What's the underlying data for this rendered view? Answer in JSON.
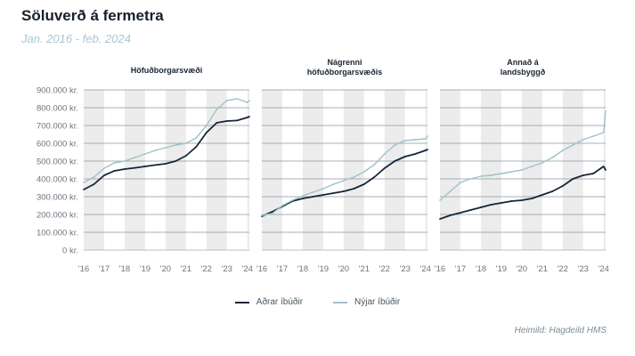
{
  "title": "Söluverð á fermetra",
  "subtitle": "Jan. 2016 - feb. 2024",
  "source": "Heimild: Hagdeild HMS",
  "legend": [
    {
      "label": "Aðrar íbúðir",
      "color": "#16263a"
    },
    {
      "label": "Nýjar íbúðir",
      "color": "#9ec3c9"
    }
  ],
  "chart_data": {
    "type": "line",
    "ylim": [
      0,
      900000
    ],
    "yticks": [
      {
        "value": 0,
        "label": "0 kr."
      },
      {
        "value": 100000,
        "label": "100.000 kr."
      },
      {
        "value": 200000,
        "label": "200.000 kr."
      },
      {
        "value": 300000,
        "label": "300.000 kr."
      },
      {
        "value": 400000,
        "label": "400.000 kr."
      },
      {
        "value": 500000,
        "label": "500.000 kr."
      },
      {
        "value": 600000,
        "label": "600.000 kr."
      },
      {
        "value": 700000,
        "label": "700.000 kr."
      },
      {
        "value": 800000,
        "label": "800.000 kr."
      },
      {
        "value": 900000,
        "label": "900.000 kr."
      }
    ],
    "xlim": [
      2016.0,
      2024.1
    ],
    "xticks": [
      {
        "value": 2016,
        "label": "'16"
      },
      {
        "value": 2017,
        "label": "'17"
      },
      {
        "value": 2018,
        "label": "'18"
      },
      {
        "value": 2019,
        "label": "'19"
      },
      {
        "value": 2020,
        "label": "'20"
      },
      {
        "value": 2021,
        "label": "'21"
      },
      {
        "value": 2022,
        "label": "'22"
      },
      {
        "value": 2023,
        "label": "'23"
      },
      {
        "value": 2024,
        "label": "'24"
      }
    ],
    "grid": true,
    "legend_position": "bottom-center",
    "panels": [
      {
        "title": [
          "Höfuðborgarsvæði"
        ],
        "series": [
          {
            "name": "Aðrar íbúðir",
            "color": "#16263a",
            "x": [
              2016.0,
              2016.5,
              2017.0,
              2017.5,
              2018.0,
              2018.5,
              2019.0,
              2019.5,
              2020.0,
              2020.5,
              2021.0,
              2021.5,
              2022.0,
              2022.5,
              2023.0,
              2023.5,
              2024.0,
              2024.1
            ],
            "y": [
              340000,
              370000,
              420000,
              445000,
              455000,
              462000,
              470000,
              478000,
              485000,
              500000,
              530000,
              580000,
              660000,
              715000,
              725000,
              728000,
              745000,
              750000
            ]
          },
          {
            "name": "Nýjar íbúðir",
            "color": "#9ec3c9",
            "x": [
              2016.0,
              2016.5,
              2017.0,
              2017.5,
              2018.0,
              2018.5,
              2019.0,
              2019.5,
              2020.0,
              2020.5,
              2021.0,
              2021.5,
              2022.0,
              2022.5,
              2023.0,
              2023.5,
              2024.0,
              2024.1
            ],
            "y": [
              380000,
              410000,
              460000,
              490000,
              500000,
              520000,
              540000,
              560000,
              575000,
              590000,
              600000,
              630000,
              700000,
              790000,
              840000,
              850000,
              830000,
              840000
            ]
          }
        ]
      },
      {
        "title": [
          "Nágrenni",
          "höfuðborgarsvæðis"
        ],
        "series": [
          {
            "name": "Aðrar íbúðir",
            "color": "#16263a",
            "x": [
              2016.0,
              2016.5,
              2017.0,
              2017.5,
              2018.0,
              2018.5,
              2019.0,
              2019.5,
              2020.0,
              2020.5,
              2021.0,
              2021.5,
              2022.0,
              2022.5,
              2023.0,
              2023.5,
              2024.0,
              2024.1
            ],
            "y": [
              190000,
              215000,
              245000,
              275000,
              290000,
              300000,
              310000,
              320000,
              330000,
              345000,
              370000,
              410000,
              460000,
              500000,
              525000,
              540000,
              560000,
              565000
            ]
          },
          {
            "name": "Nýjar íbúðir",
            "color": "#9ec3c9",
            "x": [
              2016.0,
              2016.5,
              2017.0,
              2017.5,
              2018.0,
              2018.5,
              2019.0,
              2019.5,
              2020.0,
              2020.5,
              2021.0,
              2021.5,
              2022.0,
              2022.5,
              2023.0,
              2023.5,
              2024.0,
              2024.1
            ],
            "y": [
              195000,
              205000,
              250000,
              280000,
              305000,
              325000,
              345000,
              370000,
              390000,
              410000,
              440000,
              480000,
              540000,
              590000,
              615000,
              620000,
              625000,
              640000
            ]
          }
        ]
      },
      {
        "title": [
          "Annað á",
          "landsbyggð"
        ],
        "series": [
          {
            "name": "Aðrar íbúðir",
            "color": "#16263a",
            "x": [
              2016.0,
              2016.5,
              2017.0,
              2017.5,
              2018.0,
              2018.5,
              2019.0,
              2019.5,
              2020.0,
              2020.5,
              2021.0,
              2021.5,
              2022.0,
              2022.5,
              2023.0,
              2023.5,
              2024.0,
              2024.1
            ],
            "y": [
              175000,
              195000,
              210000,
              225000,
              240000,
              255000,
              265000,
              275000,
              280000,
              290000,
              310000,
              330000,
              360000,
              400000,
              420000,
              430000,
              470000,
              450000
            ]
          },
          {
            "name": "Nýjar íbúðir",
            "color": "#9ec3c9",
            "x": [
              2016.0,
              2016.5,
              2017.0,
              2017.5,
              2018.0,
              2018.5,
              2019.0,
              2019.5,
              2020.0,
              2020.5,
              2021.0,
              2021.5,
              2022.0,
              2022.5,
              2023.0,
              2023.5,
              2024.0,
              2024.1
            ],
            "y": [
              280000,
              330000,
              380000,
              400000,
              415000,
              420000,
              430000,
              440000,
              450000,
              470000,
              490000,
              520000,
              560000,
              590000,
              620000,
              640000,
              660000,
              780000
            ]
          }
        ]
      }
    ]
  }
}
